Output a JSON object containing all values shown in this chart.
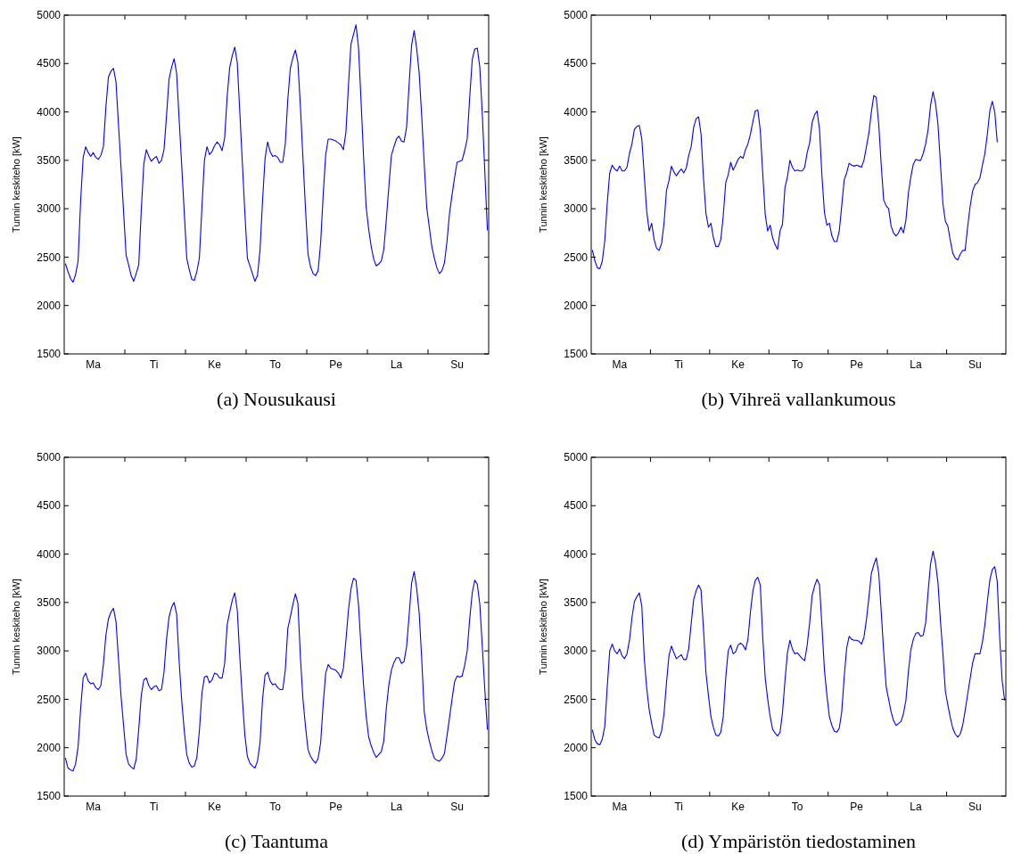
{
  "chart_data": [
    {
      "type": "line",
      "title": "(a) Nousukausi",
      "ylabel": "Tunnin keskiteho [kW]",
      "categories": [
        null,
        null,
        null,
        null,
        null,
        null,
        null,
        null,
        null,
        null,
        null,
        "Ma",
        null,
        null,
        null,
        null,
        null,
        null,
        null,
        null,
        null,
        null,
        null,
        null,
        null,
        null,
        null,
        null,
        null,
        null,
        null,
        null,
        null,
        null,
        null,
        "Ti",
        null,
        null,
        null,
        null,
        null,
        null,
        null,
        null,
        null,
        null,
        null,
        null,
        null,
        null,
        null,
        null,
        null,
        null,
        null,
        null,
        null,
        null,
        null,
        "Ke",
        null,
        null,
        null,
        null,
        null,
        null,
        null,
        null,
        null,
        null,
        null,
        null,
        null,
        null,
        null,
        null,
        null,
        null,
        null,
        null,
        null,
        null,
        null,
        "To",
        null,
        null,
        null,
        null,
        null,
        null,
        null,
        null,
        null,
        null,
        null,
        null,
        null,
        null,
        null,
        null,
        null,
        null,
        null,
        null,
        null,
        null,
        null,
        "Pe",
        null,
        null,
        null,
        null,
        null,
        null,
        null,
        null,
        null,
        null,
        null,
        null,
        null,
        null,
        null,
        null,
        null,
        null,
        null,
        null,
        null,
        null,
        null,
        "La",
        null,
        null,
        null,
        null,
        null,
        null,
        null,
        null,
        null,
        null,
        null,
        null,
        null,
        null,
        null,
        null,
        null,
        null,
        null,
        null,
        null,
        null,
        null,
        "Su",
        null,
        null,
        null,
        null,
        null,
        null,
        null,
        null,
        null,
        null,
        null,
        null
      ],
      "ylim": [
        1500,
        5000
      ],
      "yticks": [
        1500,
        2000,
        2500,
        3000,
        3500,
        4000,
        4500,
        5000
      ],
      "series": [
        {
          "color": "#0000ff",
          "values": [
            2430,
            2350,
            2280,
            2240,
            2320,
            2460,
            3080,
            3530,
            3640,
            3580,
            3540,
            3580,
            3530,
            3510,
            3550,
            3640,
            4050,
            4360,
            4420,
            4450,
            4310,
            3860,
            3420,
            2970,
            2520,
            2420,
            2310,
            2250,
            2330,
            2420,
            2980,
            3460,
            3610,
            3540,
            3490,
            3520,
            3540,
            3470,
            3500,
            3610,
            3960,
            4340,
            4460,
            4550,
            4400,
            3920,
            3450,
            2970,
            2490,
            2370,
            2270,
            2260,
            2350,
            2490,
            3010,
            3500,
            3640,
            3560,
            3590,
            3650,
            3690,
            3660,
            3600,
            3730,
            4160,
            4460,
            4580,
            4670,
            4510,
            4000,
            3480,
            2960,
            2490,
            2410,
            2330,
            2250,
            2310,
            2570,
            3080,
            3520,
            3690,
            3590,
            3540,
            3550,
            3530,
            3480,
            3480,
            3670,
            4130,
            4450,
            4560,
            4640,
            4510,
            4050,
            3520,
            3000,
            2530,
            2400,
            2330,
            2310,
            2360,
            2650,
            3140,
            3560,
            3720,
            3720,
            3710,
            3700,
            3680,
            3660,
            3610,
            3790,
            4270,
            4700,
            4800,
            4900,
            4660,
            4110,
            3530,
            3020,
            2790,
            2610,
            2480,
            2410,
            2430,
            2460,
            2580,
            2890,
            3230,
            3550,
            3640,
            3720,
            3750,
            3700,
            3690,
            3840,
            4280,
            4690,
            4840,
            4660,
            4400,
            3960,
            3460,
            3010,
            2810,
            2610,
            2490,
            2390,
            2330,
            2360,
            2440,
            2660,
            2950,
            3140,
            3320,
            3480,
            3490,
            3500,
            3600,
            3720,
            4150,
            4540,
            4650,
            4660,
            4460,
            3970,
            3370,
            2780
          ]
        }
      ]
    },
    {
      "type": "line",
      "title": "(b) Vihreä vallankumous",
      "ylabel": "Tunnin keskiteho [kW]",
      "categories": [
        null,
        null,
        null,
        null,
        null,
        null,
        null,
        null,
        null,
        null,
        null,
        "Ma",
        null,
        null,
        null,
        null,
        null,
        null,
        null,
        null,
        null,
        null,
        null,
        null,
        null,
        null,
        null,
        null,
        null,
        null,
        null,
        null,
        null,
        null,
        null,
        "Ti",
        null,
        null,
        null,
        null,
        null,
        null,
        null,
        null,
        null,
        null,
        null,
        null,
        null,
        null,
        null,
        null,
        null,
        null,
        null,
        null,
        null,
        null,
        null,
        "Ke",
        null,
        null,
        null,
        null,
        null,
        null,
        null,
        null,
        null,
        null,
        null,
        null,
        null,
        null,
        null,
        null,
        null,
        null,
        null,
        null,
        null,
        null,
        null,
        "To",
        null,
        null,
        null,
        null,
        null,
        null,
        null,
        null,
        null,
        null,
        null,
        null,
        null,
        null,
        null,
        null,
        null,
        null,
        null,
        null,
        null,
        null,
        null,
        "Pe",
        null,
        null,
        null,
        null,
        null,
        null,
        null,
        null,
        null,
        null,
        null,
        null,
        null,
        null,
        null,
        null,
        null,
        null,
        null,
        null,
        null,
        null,
        null,
        "La",
        null,
        null,
        null,
        null,
        null,
        null,
        null,
        null,
        null,
        null,
        null,
        null,
        null,
        null,
        null,
        null,
        null,
        null,
        null,
        null,
        null,
        null,
        null,
        "Su",
        null,
        null,
        null,
        null,
        null,
        null,
        null,
        null,
        null,
        null,
        null,
        null
      ],
      "ylim": [
        1500,
        5000
      ],
      "yticks": [
        1500,
        2000,
        2500,
        3000,
        3500,
        4000,
        4500,
        5000
      ],
      "series": [
        {
          "color": "#0000ff",
          "values": [
            2570,
            2460,
            2390,
            2380,
            2460,
            2670,
            3060,
            3370,
            3450,
            3410,
            3390,
            3440,
            3390,
            3390,
            3430,
            3570,
            3670,
            3820,
            3850,
            3860,
            3720,
            3340,
            2970,
            2770,
            2850,
            2680,
            2590,
            2570,
            2640,
            2850,
            3190,
            3290,
            3440,
            3380,
            3340,
            3380,
            3410,
            3370,
            3420,
            3550,
            3640,
            3840,
            3930,
            3950,
            3770,
            3310,
            2950,
            2810,
            2850,
            2700,
            2610,
            2610,
            2680,
            2930,
            3270,
            3350,
            3480,
            3400,
            3450,
            3510,
            3540,
            3520,
            3610,
            3670,
            3770,
            3900,
            4010,
            4020,
            3810,
            3360,
            2940,
            2770,
            2830,
            2700,
            2630,
            2580,
            2770,
            2840,
            3220,
            3330,
            3500,
            3430,
            3390,
            3400,
            3390,
            3390,
            3430,
            3580,
            3680,
            3890,
            3970,
            4010,
            3820,
            3330,
            2960,
            2830,
            2850,
            2720,
            2660,
            2660,
            2770,
            3030,
            3300,
            3370,
            3470,
            3450,
            3440,
            3450,
            3440,
            3430,
            3500,
            3640,
            3780,
            4000,
            4170,
            4150,
            3870,
            3450,
            3090,
            3030,
            3000,
            2820,
            2750,
            2720,
            2750,
            2810,
            2750,
            2880,
            3160,
            3330,
            3460,
            3510,
            3500,
            3500,
            3570,
            3670,
            3820,
            4070,
            4210,
            4090,
            3870,
            3460,
            3050,
            2870,
            2820,
            2670,
            2540,
            2490,
            2470,
            2530,
            2570,
            2570,
            2810,
            3020,
            3180,
            3250,
            3270,
            3320,
            3450,
            3570,
            3770,
            4010,
            4110,
            4000,
            3690,
            null,
            null,
            null
          ]
        }
      ]
    },
    {
      "type": "line",
      "title": "(c) Taantuma",
      "ylabel": "Tunnin keskiteho [kW]",
      "categories": [
        null,
        null,
        null,
        null,
        null,
        null,
        null,
        null,
        null,
        null,
        null,
        "Ma",
        null,
        null,
        null,
        null,
        null,
        null,
        null,
        null,
        null,
        null,
        null,
        null,
        null,
        null,
        null,
        null,
        null,
        null,
        null,
        null,
        null,
        null,
        null,
        "Ti",
        null,
        null,
        null,
        null,
        null,
        null,
        null,
        null,
        null,
        null,
        null,
        null,
        null,
        null,
        null,
        null,
        null,
        null,
        null,
        null,
        null,
        null,
        null,
        "Ke",
        null,
        null,
        null,
        null,
        null,
        null,
        null,
        null,
        null,
        null,
        null,
        null,
        null,
        null,
        null,
        null,
        null,
        null,
        null,
        null,
        null,
        null,
        null,
        "To",
        null,
        null,
        null,
        null,
        null,
        null,
        null,
        null,
        null,
        null,
        null,
        null,
        null,
        null,
        null,
        null,
        null,
        null,
        null,
        null,
        null,
        null,
        null,
        "Pe",
        null,
        null,
        null,
        null,
        null,
        null,
        null,
        null,
        null,
        null,
        null,
        null,
        null,
        null,
        null,
        null,
        null,
        null,
        null,
        null,
        null,
        null,
        null,
        "La",
        null,
        null,
        null,
        null,
        null,
        null,
        null,
        null,
        null,
        null,
        null,
        null,
        null,
        null,
        null,
        null,
        null,
        null,
        null,
        null,
        null,
        null,
        null,
        "Su",
        null,
        null,
        null,
        null,
        null,
        null,
        null,
        null,
        null,
        null,
        null,
        null
      ],
      "ylim": [
        1500,
        5000
      ],
      "yticks": [
        1500,
        2000,
        2500,
        3000,
        3500,
        4000,
        4500,
        5000
      ],
      "series": [
        {
          "color": "#0000ff",
          "values": [
            1890,
            1790,
            1770,
            1760,
            1830,
            2010,
            2400,
            2720,
            2770,
            2690,
            2660,
            2670,
            2620,
            2600,
            2640,
            2860,
            3160,
            3330,
            3400,
            3440,
            3300,
            2910,
            2530,
            2230,
            1930,
            1830,
            1800,
            1780,
            1880,
            2190,
            2540,
            2700,
            2720,
            2640,
            2600,
            2630,
            2640,
            2590,
            2600,
            2780,
            3120,
            3350,
            3450,
            3500,
            3380,
            2890,
            2490,
            2180,
            1930,
            1840,
            1800,
            1810,
            1900,
            2170,
            2560,
            2730,
            2740,
            2670,
            2700,
            2770,
            2760,
            2720,
            2720,
            2870,
            3270,
            3400,
            3520,
            3600,
            3420,
            2940,
            2510,
            2130,
            1910,
            1840,
            1810,
            1790,
            1860,
            2050,
            2500,
            2750,
            2780,
            2690,
            2650,
            2660,
            2620,
            2600,
            2600,
            2800,
            3230,
            3350,
            3480,
            3590,
            3490,
            2930,
            2500,
            2220,
            1980,
            1910,
            1870,
            1840,
            1890,
            2050,
            2450,
            2770,
            2860,
            2820,
            2810,
            2800,
            2770,
            2720,
            2820,
            3110,
            3420,
            3640,
            3750,
            3730,
            3470,
            3030,
            2640,
            2330,
            2110,
            2020,
            1950,
            1900,
            1930,
            1960,
            2070,
            2410,
            2650,
            2800,
            2880,
            2930,
            2930,
            2870,
            2890,
            3040,
            3360,
            3700,
            3820,
            3650,
            3390,
            2920,
            2370,
            2190,
            2070,
            1970,
            1890,
            1870,
            1860,
            1890,
            1940,
            2120,
            2310,
            2500,
            2680,
            2740,
            2730,
            2740,
            2850,
            3000,
            3330,
            3600,
            3730,
            3690,
            3480,
            3040,
            2590,
            2190
          ]
        }
      ]
    },
    {
      "type": "line",
      "title": "(d) Ympäristön tiedostaminen",
      "ylabel": "Tunnin keskiteho [kW]",
      "categories": [
        null,
        null,
        null,
        null,
        null,
        null,
        null,
        null,
        null,
        null,
        null,
        "Ma",
        null,
        null,
        null,
        null,
        null,
        null,
        null,
        null,
        null,
        null,
        null,
        null,
        null,
        null,
        null,
        null,
        null,
        null,
        null,
        null,
        null,
        null,
        null,
        "Ti",
        null,
        null,
        null,
        null,
        null,
        null,
        null,
        null,
        null,
        null,
        null,
        null,
        null,
        null,
        null,
        null,
        null,
        null,
        null,
        null,
        null,
        null,
        null,
        "Ke",
        null,
        null,
        null,
        null,
        null,
        null,
        null,
        null,
        null,
        null,
        null,
        null,
        null,
        null,
        null,
        null,
        null,
        null,
        null,
        null,
        null,
        null,
        null,
        "To",
        null,
        null,
        null,
        null,
        null,
        null,
        null,
        null,
        null,
        null,
        null,
        null,
        null,
        null,
        null,
        null,
        null,
        null,
        null,
        null,
        null,
        null,
        null,
        "Pe",
        null,
        null,
        null,
        null,
        null,
        null,
        null,
        null,
        null,
        null,
        null,
        null,
        null,
        null,
        null,
        null,
        null,
        null,
        null,
        null,
        null,
        null,
        null,
        "La",
        null,
        null,
        null,
        null,
        null,
        null,
        null,
        null,
        null,
        null,
        null,
        null,
        null,
        null,
        null,
        null,
        null,
        null,
        null,
        null,
        null,
        null,
        null,
        "Su",
        null,
        null,
        null,
        null,
        null,
        null,
        null,
        null,
        null,
        null,
        null,
        null
      ],
      "ylim": [
        1500,
        5000
      ],
      "yticks": [
        1500,
        2000,
        2500,
        3000,
        3500,
        4000,
        4500,
        5000
      ],
      "series": [
        {
          "color": "#0000ff",
          "values": [
            2180,
            2080,
            2040,
            2030,
            2090,
            2220,
            2630,
            3000,
            3070,
            3000,
            2970,
            3020,
            2950,
            2920,
            2970,
            3110,
            3340,
            3510,
            3560,
            3600,
            3460,
            2920,
            2610,
            2390,
            2250,
            2130,
            2110,
            2100,
            2170,
            2350,
            2670,
            2950,
            3050,
            2980,
            2920,
            2940,
            2960,
            2910,
            2910,
            3020,
            3280,
            3530,
            3620,
            3680,
            3630,
            3220,
            2770,
            2540,
            2320,
            2210,
            2130,
            2120,
            2160,
            2320,
            2720,
            3000,
            3060,
            2970,
            2990,
            3060,
            3080,
            3060,
            3010,
            3120,
            3400,
            3620,
            3730,
            3760,
            3680,
            3140,
            2720,
            2500,
            2320,
            2190,
            2150,
            2120,
            2160,
            2360,
            2690,
            2980,
            3110,
            3020,
            2970,
            2980,
            2950,
            2920,
            2900,
            3060,
            3290,
            3570,
            3670,
            3740,
            3680,
            3250,
            2800,
            2540,
            2320,
            2230,
            2170,
            2160,
            2200,
            2370,
            2730,
            3030,
            3150,
            3120,
            3110,
            3110,
            3100,
            3070,
            3140,
            3320,
            3550,
            3800,
            3890,
            3960,
            3800,
            3410,
            2990,
            2630,
            2500,
            2370,
            2280,
            2230,
            2250,
            2270,
            2350,
            2490,
            2780,
            3010,
            3120,
            3180,
            3190,
            3150,
            3160,
            3290,
            3610,
            3900,
            4030,
            3910,
            3700,
            3310,
            2970,
            2580,
            2440,
            2310,
            2200,
            2140,
            2110,
            2140,
            2230,
            2380,
            2550,
            2710,
            2870,
            2970,
            2970,
            2970,
            3090,
            3270,
            3510,
            3730,
            3840,
            3870,
            3720,
            3140,
            2690,
            2490
          ]
        }
      ]
    }
  ]
}
